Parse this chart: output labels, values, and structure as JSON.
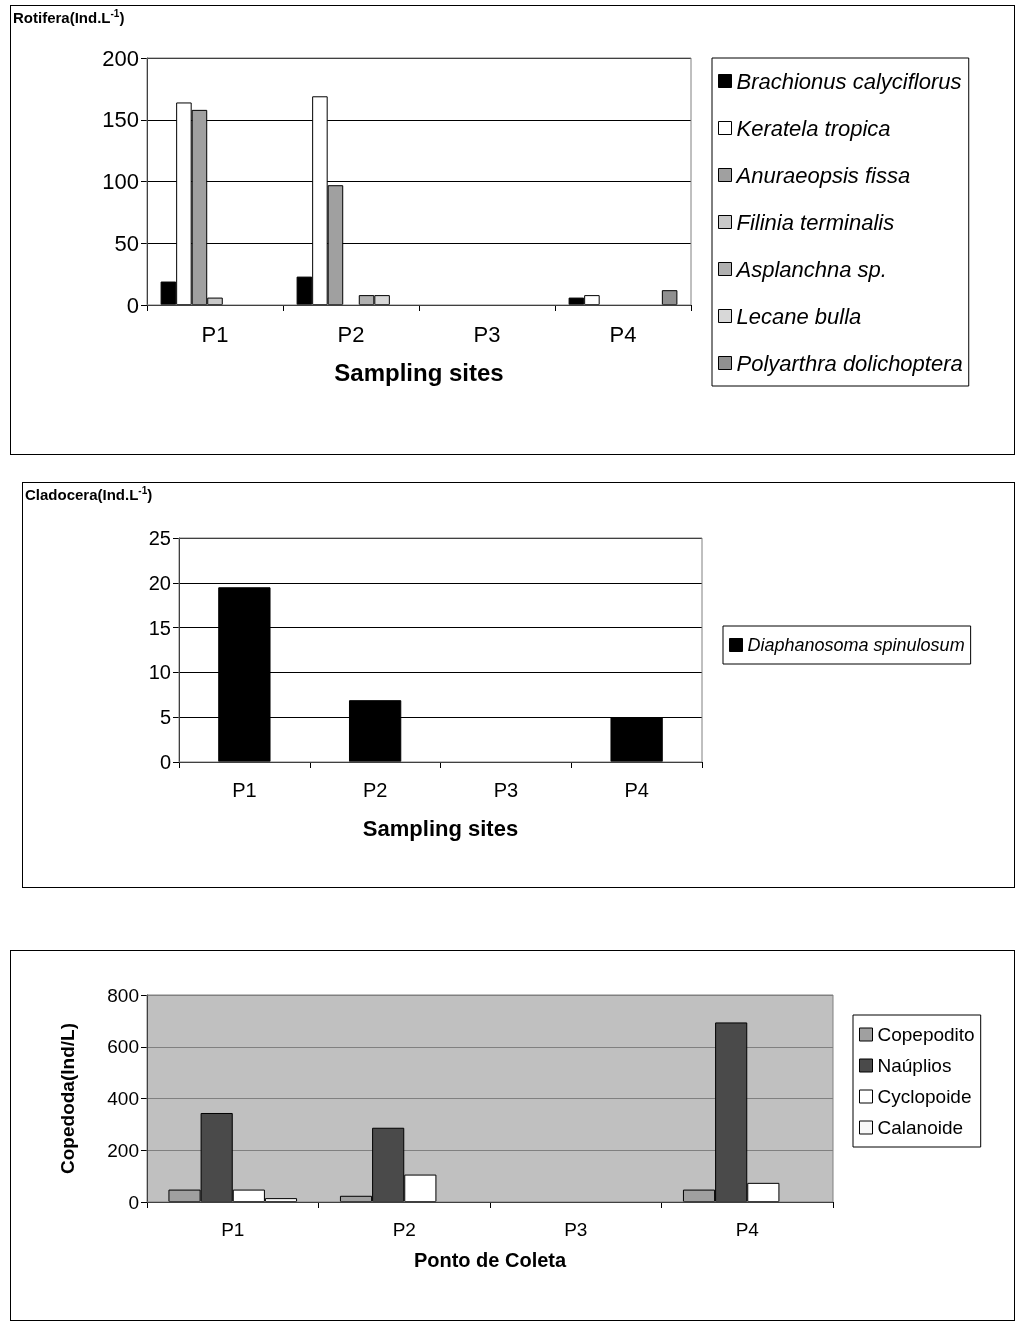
{
  "chart_data": [
    {
      "type": "bar",
      "ylabel": "Rotifera(Ind.L$^{-1}$)",
      "xlabel": "Sampling sites",
      "categories": [
        "P1",
        "P2",
        "P3",
        "P4"
      ],
      "ylim": [
        0,
        200
      ],
      "yticks": [
        0,
        50,
        100,
        150,
        200
      ],
      "grid": "y",
      "legend": "right",
      "series": [
        {
          "name": "Brachionus calyciflorus",
          "color": "#000000",
          "values": [
            19,
            23,
            null,
            6
          ]
        },
        {
          "name": "Keratela tropica",
          "color": "#ffffff",
          "values": [
            164,
            169,
            null,
            8
          ]
        },
        {
          "name": "Anuraeopsis fissa",
          "color": "#a0a0a0",
          "values": [
            158,
            97,
            null,
            null
          ]
        },
        {
          "name": "Filinia terminalis",
          "color": "#c8c8c8",
          "values": [
            6,
            null,
            null,
            null
          ]
        },
        {
          "name": "Asplanchna sp.",
          "color": "#b0b0b0",
          "values": [
            null,
            8,
            null,
            null
          ]
        },
        {
          "name": "Lecane bulla",
          "color": "#d8d8d8",
          "values": [
            null,
            8,
            null,
            null
          ]
        },
        {
          "name": "Polyarthra dolichoptera",
          "color": "#909090",
          "values": [
            null,
            null,
            null,
            12
          ]
        }
      ]
    },
    {
      "type": "bar",
      "ylabel": "Cladocera(Ind.L$^{-1}$)",
      "xlabel": "Sampling sites",
      "categories": [
        "P1",
        "P2",
        "P3",
        "P4"
      ],
      "ylim": [
        0,
        25
      ],
      "yticks": [
        0,
        5,
        10,
        15,
        20,
        25
      ],
      "grid": "y",
      "legend": "right",
      "series": [
        {
          "name": "Diaphanosoma spinulosum",
          "color": "#000000",
          "values": [
            19.5,
            6.9,
            null,
            5.0
          ]
        }
      ]
    },
    {
      "type": "bar",
      "ylabel": "Copedoda(Ind/L)",
      "xlabel": "Ponto de Coleta",
      "categories": [
        "P1",
        "P2",
        "P3",
        "P4"
      ],
      "ylim": [
        0,
        800
      ],
      "yticks": [
        0,
        200,
        400,
        600,
        800
      ],
      "grid": "y",
      "legend": "right",
      "series": [
        {
          "name": "Copepodito",
          "color": "#a0a0a0",
          "values": [
            48,
            24,
            null,
            48
          ]
        },
        {
          "name": "Naúplios",
          "color": "#4a4a4a",
          "values": [
            344,
            287,
            null,
            694
          ]
        },
        {
          "name": "Cyclopoide",
          "color": "#ffffff",
          "values": [
            48,
            106,
            null,
            74
          ]
        },
        {
          "name": "Calanoide",
          "color": "#f8f8f8",
          "values": [
            15,
            null,
            null,
            null
          ]
        }
      ]
    }
  ]
}
